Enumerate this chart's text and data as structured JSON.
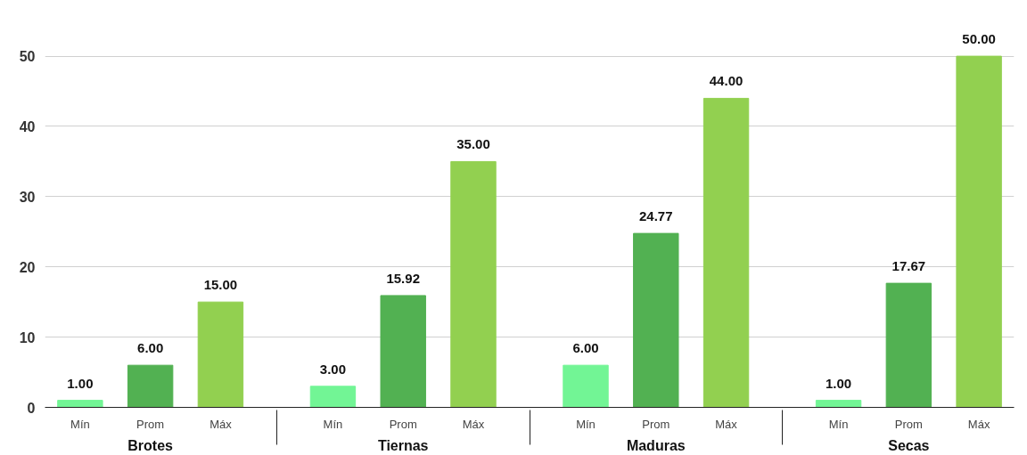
{
  "chart_data": {
    "type": "bar",
    "categories": [
      "Brotes",
      "Tiernas",
      "Maduras",
      "Secas"
    ],
    "series": [
      {
        "name": "Mín",
        "color": "#72f595",
        "values": [
          1,
          3,
          6,
          1
        ],
        "value_labels": [
          "1.00",
          "3.00",
          "6.00",
          "1.00"
        ]
      },
      {
        "name": "Prom",
        "color": "#52b152",
        "values": [
          6,
          15.92,
          24.77,
          17.67
        ],
        "value_labels": [
          "6.00",
          "15.92",
          "24.77",
          "17.67"
        ]
      },
      {
        "name": "Máx",
        "color": "#92d050",
        "values": [
          15,
          35,
          44,
          50
        ],
        "value_labels": [
          "15.00",
          "35.00",
          "44.00",
          "50.00"
        ]
      }
    ],
    "ylim": [
      0,
      50
    ],
    "yticks": [
      0,
      10,
      20,
      30,
      40,
      50
    ],
    "grid": "y"
  }
}
